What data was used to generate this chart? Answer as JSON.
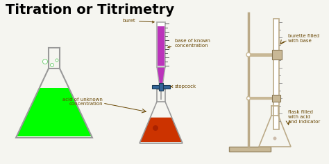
{
  "title": "Titration or Titrimetry",
  "title_fontsize": 14,
  "title_weight": "bold",
  "background_color": "#f5f5f0",
  "labels": {
    "buret": "buret",
    "base_known": "base of known\nconcentration",
    "stopcock": "stopcock",
    "acid_unknown": "acid of unknown\nconcentration",
    "burette_filled": "burette filled\nwith base",
    "flask_filled": "flask filled\nwith acid\nand indicator"
  },
  "colors": {
    "flask_green_fill": "#00ff00",
    "flask_green_outline": "#999999",
    "burette_purple": "#bb33bb",
    "flask_orange": "#cc3300",
    "stopcock_blue": "#336699",
    "stand_color": "#c8b896",
    "clamp_color": "#c8b896",
    "text_color": "#664400",
    "buret_outline": "#aaaaaa",
    "tick_color": "#555555",
    "rod_color": "#bbaa88"
  }
}
